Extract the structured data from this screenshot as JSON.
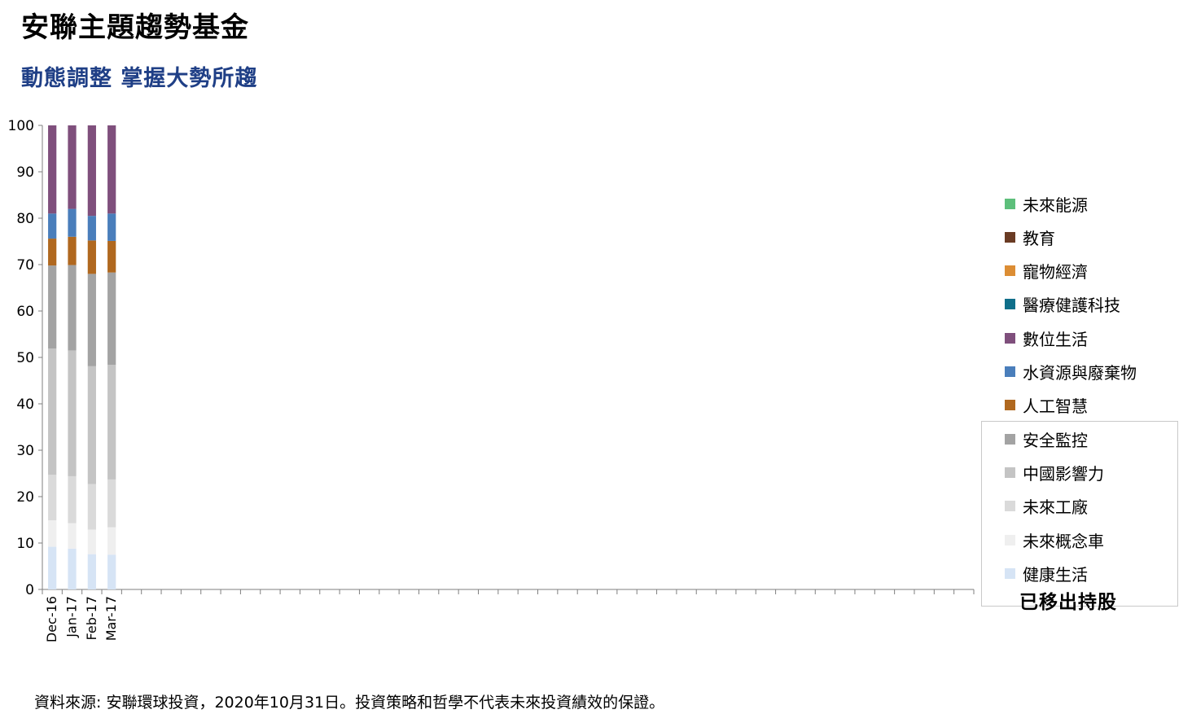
{
  "title": "安聯主題趨勢基金",
  "subtitle": "動態調整  掌握大勢所趨",
  "source_note": "資料來源: 安聯環球投資，2020年10月31日。投資策略和哲學不代表未來投資績效的保證。",
  "legend_group_label": "已移出持股",
  "chart_data": {
    "type": "bar",
    "stacked": true,
    "ylim": [
      0,
      100
    ],
    "yticks": [
      0,
      10,
      20,
      30,
      40,
      50,
      60,
      70,
      80,
      90,
      100
    ],
    "grid": false,
    "legend_position": "right",
    "categories": [
      "Dec-16",
      "Jan-17",
      "Feb-17",
      "Mar-17"
    ],
    "series": [
      {
        "name": "健康生活",
        "color": "#d6e4f5",
        "values": [
          9.2,
          8.8,
          7.6,
          7.5
        ]
      },
      {
        "name": "未來概念車",
        "color": "#efefef",
        "values": [
          5.7,
          5.5,
          5.3,
          5.9
        ]
      },
      {
        "name": "未來工廠",
        "color": "#dadada",
        "values": [
          9.8,
          10.1,
          9.8,
          10.3
        ]
      },
      {
        "name": "中國影響力",
        "color": "#c4c4c4",
        "values": [
          27.2,
          27.1,
          25.4,
          24.7
        ]
      },
      {
        "name": "安全監控",
        "color": "#a3a3a3",
        "values": [
          17.9,
          18.4,
          19.9,
          19.9
        ]
      },
      {
        "name": "人工智慧",
        "color": "#b0681f",
        "values": [
          5.8,
          6.1,
          7.2,
          6.8
        ]
      },
      {
        "name": "水資源與廢棄物",
        "color": "#4a7ebb",
        "values": [
          5.4,
          6.0,
          5.3,
          5.9
        ]
      },
      {
        "name": "數位生活",
        "color": "#7f4f7c",
        "values": [
          19.0,
          18.0,
          19.5,
          19.0
        ]
      },
      {
        "name": "醫療健護科技",
        "color": "#0f6f8a",
        "values": [
          0,
          0,
          0,
          0
        ]
      },
      {
        "name": "寵物經濟",
        "color": "#dc8d34",
        "values": [
          0,
          0,
          0,
          0
        ]
      },
      {
        "name": "教育",
        "color": "#6a3b24",
        "values": [
          0,
          0,
          0,
          0
        ]
      },
      {
        "name": "未來能源",
        "color": "#5dbf7b",
        "values": [
          0,
          0,
          0,
          0
        ]
      }
    ]
  }
}
